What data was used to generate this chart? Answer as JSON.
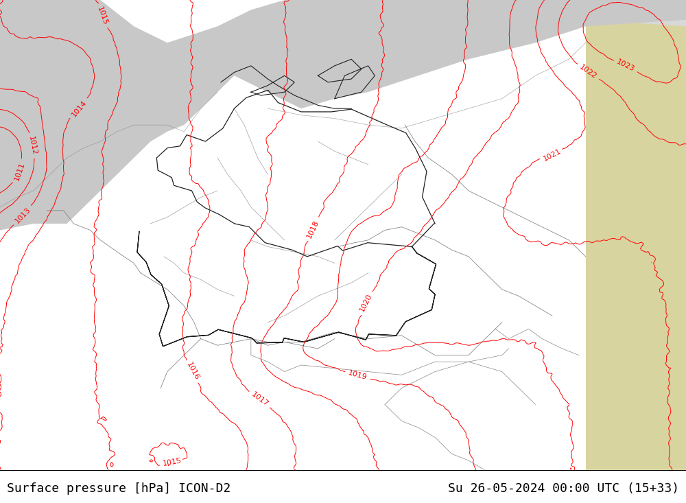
{
  "title_left": "Surface pressure [hPa] ICON-D2",
  "title_right": "Su 26-05-2024 00:00 UTC (15+33)",
  "bg_green_color": "#c8f096",
  "grey_sea_color": "#c8c8c8",
  "grey_light_color": "#d8d8d8",
  "land_outside_color": "#d8d4a0",
  "border_color_dark": "#202020",
  "border_color_grey": "#888888",
  "contour_color": "#ff0000",
  "bottom_bar_color": "#ffffff",
  "bottom_text_color": "#000000",
  "figsize": [
    10.0,
    7.33
  ],
  "dpi": 100,
  "font_size_title": 13,
  "font_size_labels": 8
}
